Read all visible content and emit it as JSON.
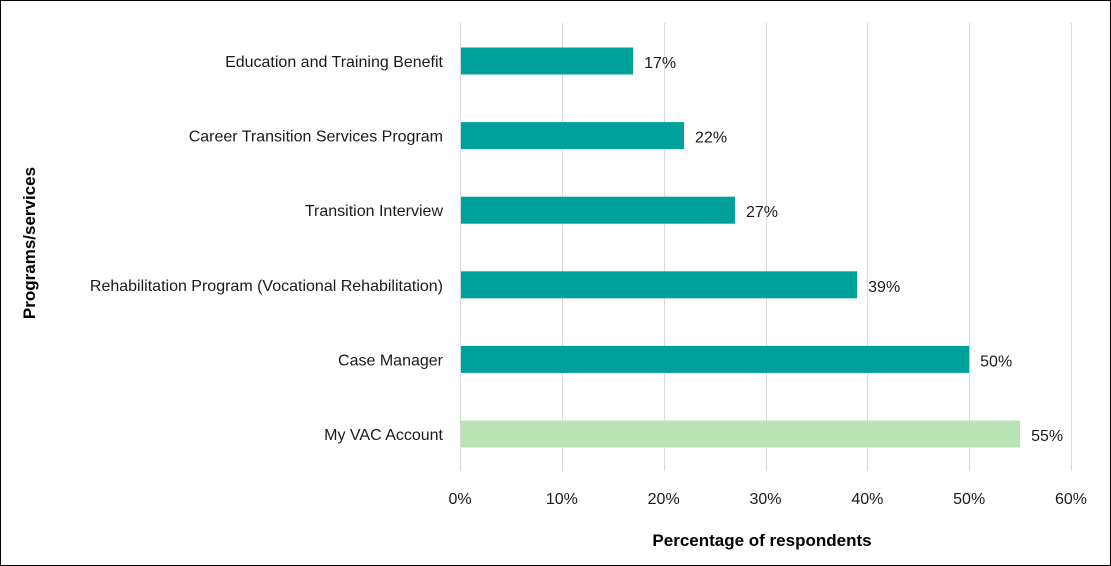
{
  "chart_data": {
    "type": "bar",
    "orientation": "horizontal",
    "categories": [
      "Education and Training Benefit",
      "Career Transition Services Program",
      "Transition Interview",
      "Rehabilitation Program (Vocational Rehabilitation)",
      "Case Manager",
      "My VAC Account"
    ],
    "values": [
      17,
      22,
      27,
      39,
      50,
      55
    ],
    "data_labels": [
      "17%",
      "22%",
      "27%",
      "39%",
      "50%",
      "55%"
    ],
    "bar_colors": [
      "#00a19a",
      "#00a19a",
      "#00a19a",
      "#00a19a",
      "#00a19a",
      "#b9e3b5"
    ],
    "xlabel": "Percentage  of respondents",
    "ylabel": "Programs/services",
    "xlim": [
      0,
      60
    ],
    "xticks": [
      0,
      10,
      20,
      30,
      40,
      50,
      60
    ],
    "xtick_labels": [
      "0%",
      "10%",
      "20%",
      "30%",
      "40%",
      "50%",
      "60%"
    ],
    "grid": "vertical",
    "legend": "none"
  }
}
